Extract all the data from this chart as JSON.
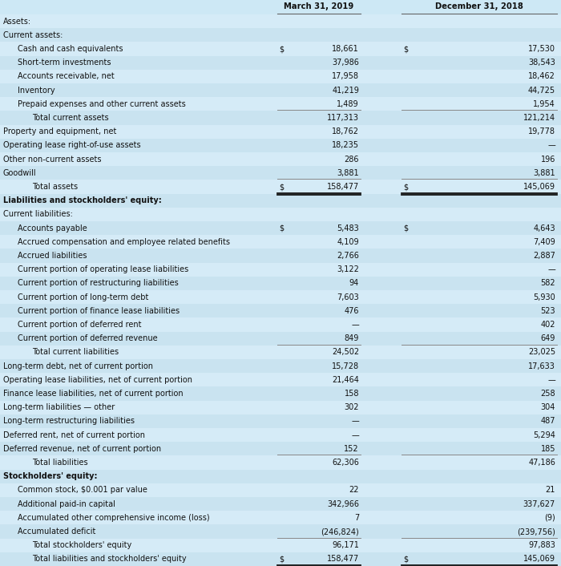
{
  "title_col1": "March 31, 2019",
  "title_col2": "December 31, 2018",
  "rows": [
    {
      "label": "Assets:",
      "indent": 0,
      "val1": "",
      "val2": "",
      "bold": false,
      "section_header": false,
      "dollar1": false,
      "dollar2": false,
      "underline1": false,
      "underline2": false,
      "double_underline1": false,
      "double_underline2": false
    },
    {
      "label": "Current assets:",
      "indent": 0,
      "val1": "",
      "val2": "",
      "bold": false,
      "section_header": false,
      "dollar1": false,
      "dollar2": false,
      "underline1": false,
      "underline2": false,
      "double_underline1": false,
      "double_underline2": false
    },
    {
      "label": "Cash and cash equivalents",
      "indent": 1,
      "val1": "18,661",
      "val2": "17,530",
      "bold": false,
      "section_header": false,
      "dollar1": true,
      "dollar2": true,
      "underline1": false,
      "underline2": false,
      "double_underline1": false,
      "double_underline2": false
    },
    {
      "label": "Short-term investments",
      "indent": 1,
      "val1": "37,986",
      "val2": "38,543",
      "bold": false,
      "section_header": false,
      "dollar1": false,
      "dollar2": false,
      "underline1": false,
      "underline2": false,
      "double_underline1": false,
      "double_underline2": false
    },
    {
      "label": "Accounts receivable, net",
      "indent": 1,
      "val1": "17,958",
      "val2": "18,462",
      "bold": false,
      "section_header": false,
      "dollar1": false,
      "dollar2": false,
      "underline1": false,
      "underline2": false,
      "double_underline1": false,
      "double_underline2": false
    },
    {
      "label": "Inventory",
      "indent": 1,
      "val1": "41,219",
      "val2": "44,725",
      "bold": false,
      "section_header": false,
      "dollar1": false,
      "dollar2": false,
      "underline1": false,
      "underline2": false,
      "double_underline1": false,
      "double_underline2": false
    },
    {
      "label": "Prepaid expenses and other current assets",
      "indent": 1,
      "val1": "1,489",
      "val2": "1,954",
      "bold": false,
      "section_header": false,
      "dollar1": false,
      "dollar2": false,
      "underline1": true,
      "underline2": true,
      "double_underline1": false,
      "double_underline2": false
    },
    {
      "label": "Total current assets",
      "indent": 2,
      "val1": "117,313",
      "val2": "121,214",
      "bold": false,
      "section_header": false,
      "dollar1": false,
      "dollar2": false,
      "underline1": false,
      "underline2": false,
      "double_underline1": false,
      "double_underline2": false
    },
    {
      "label": "Property and equipment, net",
      "indent": 0,
      "val1": "18,762",
      "val2": "19,778",
      "bold": false,
      "section_header": false,
      "dollar1": false,
      "dollar2": false,
      "underline1": false,
      "underline2": false,
      "double_underline1": false,
      "double_underline2": false
    },
    {
      "label": "Operating lease right-of-use assets",
      "indent": 0,
      "val1": "18,235",
      "val2": "—",
      "bold": false,
      "section_header": false,
      "dollar1": false,
      "dollar2": false,
      "underline1": false,
      "underline2": false,
      "double_underline1": false,
      "double_underline2": false
    },
    {
      "label": "Other non-current assets",
      "indent": 0,
      "val1": "286",
      "val2": "196",
      "bold": false,
      "section_header": false,
      "dollar1": false,
      "dollar2": false,
      "underline1": false,
      "underline2": false,
      "double_underline1": false,
      "double_underline2": false
    },
    {
      "label": "Goodwill",
      "indent": 0,
      "val1": "3,881",
      "val2": "3,881",
      "bold": false,
      "section_header": false,
      "dollar1": false,
      "dollar2": false,
      "underline1": true,
      "underline2": true,
      "double_underline1": false,
      "double_underline2": false
    },
    {
      "label": "Total assets",
      "indent": 2,
      "val1": "158,477",
      "val2": "145,069",
      "bold": false,
      "section_header": false,
      "dollar1": true,
      "dollar2": true,
      "underline1": false,
      "underline2": false,
      "double_underline1": true,
      "double_underline2": true
    },
    {
      "label": "Liabilities and stockholders' equity:",
      "indent": 0,
      "val1": "",
      "val2": "",
      "bold": true,
      "section_header": true,
      "dollar1": false,
      "dollar2": false,
      "underline1": false,
      "underline2": false,
      "double_underline1": false,
      "double_underline2": false
    },
    {
      "label": "Current liabilities:",
      "indent": 0,
      "val1": "",
      "val2": "",
      "bold": false,
      "section_header": false,
      "dollar1": false,
      "dollar2": false,
      "underline1": false,
      "underline2": false,
      "double_underline1": false,
      "double_underline2": false
    },
    {
      "label": "Accounts payable",
      "indent": 1,
      "val1": "5,483",
      "val2": "4,643",
      "bold": false,
      "section_header": false,
      "dollar1": true,
      "dollar2": true,
      "underline1": false,
      "underline2": false,
      "double_underline1": false,
      "double_underline2": false
    },
    {
      "label": "Accrued compensation and employee related benefits",
      "indent": 1,
      "val1": "4,109",
      "val2": "7,409",
      "bold": false,
      "section_header": false,
      "dollar1": false,
      "dollar2": false,
      "underline1": false,
      "underline2": false,
      "double_underline1": false,
      "double_underline2": false
    },
    {
      "label": "Accrued liabilities",
      "indent": 1,
      "val1": "2,766",
      "val2": "2,887",
      "bold": false,
      "section_header": false,
      "dollar1": false,
      "dollar2": false,
      "underline1": false,
      "underline2": false,
      "double_underline1": false,
      "double_underline2": false
    },
    {
      "label": "Current portion of operating lease liabilities",
      "indent": 1,
      "val1": "3,122",
      "val2": "—",
      "bold": false,
      "section_header": false,
      "dollar1": false,
      "dollar2": false,
      "underline1": false,
      "underline2": false,
      "double_underline1": false,
      "double_underline2": false
    },
    {
      "label": "Current portion of restructuring liabilities",
      "indent": 1,
      "val1": "94",
      "val2": "582",
      "bold": false,
      "section_header": false,
      "dollar1": false,
      "dollar2": false,
      "underline1": false,
      "underline2": false,
      "double_underline1": false,
      "double_underline2": false
    },
    {
      "label": "Current portion of long-term debt",
      "indent": 1,
      "val1": "7,603",
      "val2": "5,930",
      "bold": false,
      "section_header": false,
      "dollar1": false,
      "dollar2": false,
      "underline1": false,
      "underline2": false,
      "double_underline1": false,
      "double_underline2": false
    },
    {
      "label": "Current portion of finance lease liabilities",
      "indent": 1,
      "val1": "476",
      "val2": "523",
      "bold": false,
      "section_header": false,
      "dollar1": false,
      "dollar2": false,
      "underline1": false,
      "underline2": false,
      "double_underline1": false,
      "double_underline2": false
    },
    {
      "label": "Current portion of deferred rent",
      "indent": 1,
      "val1": "—",
      "val2": "402",
      "bold": false,
      "section_header": false,
      "dollar1": false,
      "dollar2": false,
      "underline1": false,
      "underline2": false,
      "double_underline1": false,
      "double_underline2": false
    },
    {
      "label": "Current portion of deferred revenue",
      "indent": 1,
      "val1": "849",
      "val2": "649",
      "bold": false,
      "section_header": false,
      "dollar1": false,
      "dollar2": false,
      "underline1": true,
      "underline2": true,
      "double_underline1": false,
      "double_underline2": false
    },
    {
      "label": "Total current liabilities",
      "indent": 2,
      "val1": "24,502",
      "val2": "23,025",
      "bold": false,
      "section_header": false,
      "dollar1": false,
      "dollar2": false,
      "underline1": false,
      "underline2": false,
      "double_underline1": false,
      "double_underline2": false
    },
    {
      "label": "Long-term debt, net of current portion",
      "indent": 0,
      "val1": "15,728",
      "val2": "17,633",
      "bold": false,
      "section_header": false,
      "dollar1": false,
      "dollar2": false,
      "underline1": false,
      "underline2": false,
      "double_underline1": false,
      "double_underline2": false
    },
    {
      "label": "Operating lease liabilities, net of current portion",
      "indent": 0,
      "val1": "21,464",
      "val2": "—",
      "bold": false,
      "section_header": false,
      "dollar1": false,
      "dollar2": false,
      "underline1": false,
      "underline2": false,
      "double_underline1": false,
      "double_underline2": false
    },
    {
      "label": "Finance lease liabilities, net of current portion",
      "indent": 0,
      "val1": "158",
      "val2": "258",
      "bold": false,
      "section_header": false,
      "dollar1": false,
      "dollar2": false,
      "underline1": false,
      "underline2": false,
      "double_underline1": false,
      "double_underline2": false
    },
    {
      "label": "Long-term liabilities — other",
      "indent": 0,
      "val1": "302",
      "val2": "304",
      "bold": false,
      "section_header": false,
      "dollar1": false,
      "dollar2": false,
      "underline1": false,
      "underline2": false,
      "double_underline1": false,
      "double_underline2": false
    },
    {
      "label": "Long-term restructuring liabilities",
      "indent": 0,
      "val1": "—",
      "val2": "487",
      "bold": false,
      "section_header": false,
      "dollar1": false,
      "dollar2": false,
      "underline1": false,
      "underline2": false,
      "double_underline1": false,
      "double_underline2": false
    },
    {
      "label": "Deferred rent, net of current portion",
      "indent": 0,
      "val1": "—",
      "val2": "5,294",
      "bold": false,
      "section_header": false,
      "dollar1": false,
      "dollar2": false,
      "underline1": false,
      "underline2": false,
      "double_underline1": false,
      "double_underline2": false
    },
    {
      "label": "Deferred revenue, net of current portion",
      "indent": 0,
      "val1": "152",
      "val2": "185",
      "bold": false,
      "section_header": false,
      "dollar1": false,
      "dollar2": false,
      "underline1": true,
      "underline2": true,
      "double_underline1": false,
      "double_underline2": false
    },
    {
      "label": "Total liabilities",
      "indent": 2,
      "val1": "62,306",
      "val2": "47,186",
      "bold": false,
      "section_header": false,
      "dollar1": false,
      "dollar2": false,
      "underline1": false,
      "underline2": false,
      "double_underline1": false,
      "double_underline2": false
    },
    {
      "label": "Stockholders' equity:",
      "indent": 0,
      "val1": "",
      "val2": "",
      "bold": true,
      "section_header": true,
      "dollar1": false,
      "dollar2": false,
      "underline1": false,
      "underline2": false,
      "double_underline1": false,
      "double_underline2": false
    },
    {
      "label": "Common stock, $0.001 par value",
      "indent": 1,
      "val1": "22",
      "val2": "21",
      "bold": false,
      "section_header": false,
      "dollar1": false,
      "dollar2": false,
      "underline1": false,
      "underline2": false,
      "double_underline1": false,
      "double_underline2": false
    },
    {
      "label": "Additional paid-in capital",
      "indent": 1,
      "val1": "342,966",
      "val2": "337,627",
      "bold": false,
      "section_header": false,
      "dollar1": false,
      "dollar2": false,
      "underline1": false,
      "underline2": false,
      "double_underline1": false,
      "double_underline2": false
    },
    {
      "label": "Accumulated other comprehensive income (loss)",
      "indent": 1,
      "val1": "7",
      "val2": "(9)",
      "bold": false,
      "section_header": false,
      "dollar1": false,
      "dollar2": false,
      "underline1": false,
      "underline2": false,
      "double_underline1": false,
      "double_underline2": false
    },
    {
      "label": "Accumulated deficit",
      "indent": 1,
      "val1": "(246,824)",
      "val2": "(239,756)",
      "bold": false,
      "section_header": false,
      "dollar1": false,
      "dollar2": false,
      "underline1": true,
      "underline2": true,
      "double_underline1": false,
      "double_underline2": false
    },
    {
      "label": "Total stockholders' equity",
      "indent": 2,
      "val1": "96,171",
      "val2": "97,883",
      "bold": false,
      "section_header": false,
      "dollar1": false,
      "dollar2": false,
      "underline1": false,
      "underline2": false,
      "double_underline1": false,
      "double_underline2": false
    },
    {
      "label": "Total liabilities and stockholders' equity",
      "indent": 2,
      "val1": "158,477",
      "val2": "145,069",
      "bold": false,
      "section_header": false,
      "dollar1": true,
      "dollar2": true,
      "underline1": false,
      "underline2": false,
      "double_underline1": true,
      "double_underline2": true
    }
  ]
}
